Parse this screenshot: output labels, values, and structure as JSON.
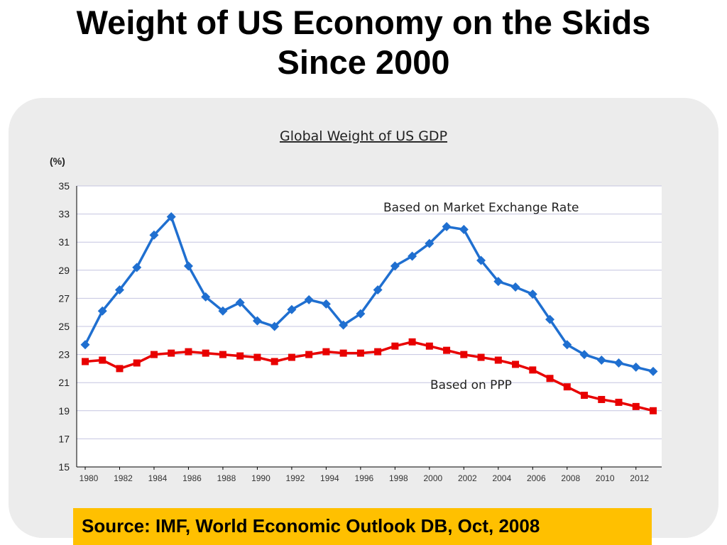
{
  "slide": {
    "title_line1": "Weight of US Economy on the Skids",
    "title_line2": "Since 2000",
    "source": "Source: IMF, World Economic Outlook DB, Oct, 2008"
  },
  "colors": {
    "market_series": "#1f6fd0",
    "ppp_series": "#e80000",
    "source_box": "#ffc000",
    "panel": "#ececec"
  },
  "chart_data": {
    "type": "line",
    "title": "Global Weight of US GDP",
    "ylabel": "(%)",
    "xlabel": "",
    "ylim": [
      15,
      35
    ],
    "yticks": [
      35,
      33,
      31,
      29,
      27,
      25,
      23,
      21,
      19,
      17,
      15
    ],
    "xtick_labels": [
      "1980",
      "1982",
      "1984",
      "1986",
      "1988",
      "1990",
      "1992",
      "1994",
      "1996",
      "1998",
      "2000",
      "2002",
      "2004",
      "2006",
      "2008",
      "2010",
      "2012"
    ],
    "grid": true,
    "x": [
      1980,
      1981,
      1982,
      1983,
      1984,
      1985,
      1986,
      1987,
      1988,
      1989,
      1990,
      1991,
      1992,
      1993,
      1994,
      1995,
      1996,
      1997,
      1998,
      1999,
      2000,
      2001,
      2002,
      2003,
      2004,
      2005,
      2006,
      2007,
      2008,
      2009,
      2010,
      2011,
      2012,
      2013
    ],
    "series": [
      {
        "name": "Based on Market Exchange Rate",
        "marker": "diamond",
        "values": [
          23.7,
          26.1,
          27.6,
          29.2,
          31.5,
          32.8,
          29.3,
          27.1,
          26.1,
          26.7,
          25.4,
          25.0,
          26.2,
          26.9,
          26.6,
          25.1,
          25.9,
          27.6,
          29.3,
          30.0,
          30.9,
          32.1,
          31.9,
          29.7,
          28.2,
          27.8,
          27.3,
          25.5,
          23.7,
          23.0,
          22.6,
          22.4,
          22.1,
          21.8
        ]
      },
      {
        "name": "Based on PPP",
        "marker": "square",
        "values": [
          22.5,
          22.6,
          22.0,
          22.4,
          23.0,
          23.1,
          23.2,
          23.1,
          23.0,
          22.9,
          22.8,
          22.5,
          22.8,
          23.0,
          23.2,
          23.1,
          23.1,
          23.2,
          23.6,
          23.9,
          23.6,
          23.3,
          23.0,
          22.8,
          22.6,
          22.3,
          21.9,
          21.3,
          20.7,
          20.1,
          19.8,
          19.6,
          19.3,
          19.0
        ]
      }
    ]
  }
}
